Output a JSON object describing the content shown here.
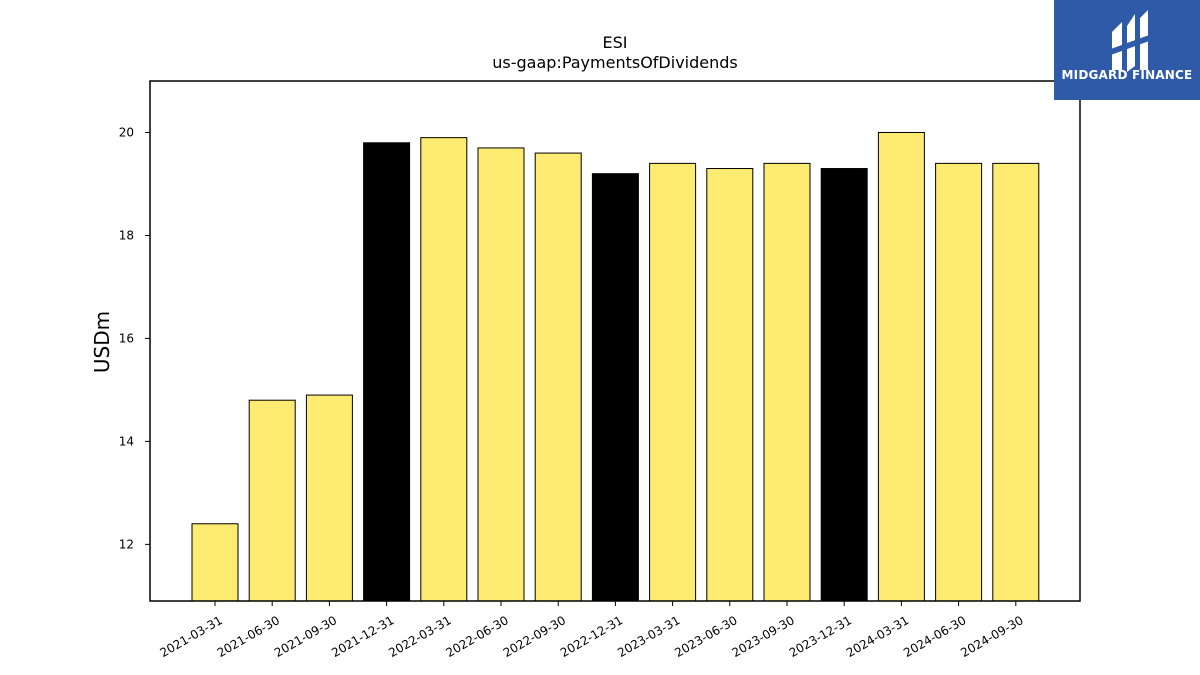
{
  "chart_data": {
    "type": "bar",
    "title": "ESI",
    "subtitle": "us-gaap:PaymentsOfDividends",
    "xlabel": "",
    "ylabel": "USDm",
    "ylim": [
      10.9,
      21.0
    ],
    "yticks": [
      12,
      14,
      16,
      18,
      20
    ],
    "grid": false,
    "categories": [
      "2021-03-31",
      "2021-06-30",
      "2021-09-30",
      "2021-12-31",
      "2022-03-31",
      "2022-06-30",
      "2022-09-30",
      "2022-12-31",
      "2023-03-31",
      "2023-06-30",
      "2023-09-30",
      "2023-12-31",
      "2024-03-31",
      "2024-06-30",
      "2024-09-30"
    ],
    "values": [
      12.4,
      14.8,
      14.9,
      19.8,
      19.9,
      19.7,
      19.6,
      19.2,
      19.4,
      19.3,
      19.4,
      19.3,
      20.0,
      19.4,
      19.4
    ],
    "highlighted": [
      "2021-12-31",
      "2022-12-31",
      "2023-12-31"
    ],
    "colors": {
      "bar": "#fdeb72",
      "highlight": "#000000",
      "edge": "#000000"
    }
  },
  "logo": {
    "text": "MIDGARD FINANCE",
    "background": "#2f5aa8",
    "icon": "midgard-m-icon"
  }
}
